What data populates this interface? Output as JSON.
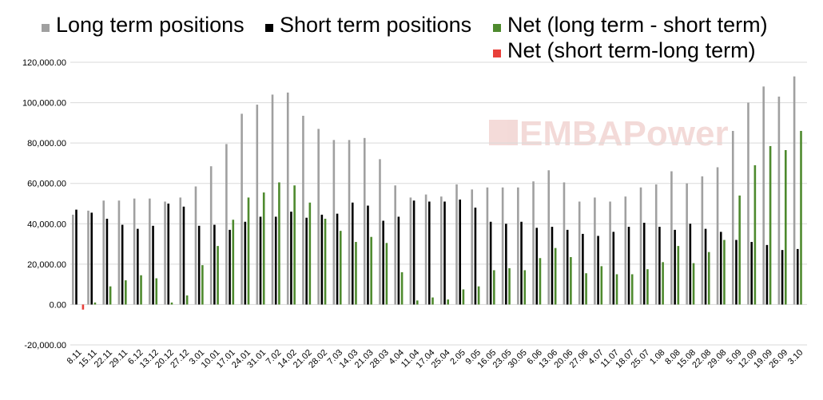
{
  "chart_data": {
    "type": "bar",
    "categories": [
      "8.11",
      "15.11",
      "22.11",
      "29.11",
      "6.12",
      "13.12",
      "20.12",
      "27.12",
      "3.01",
      "10.01",
      "17.01",
      "24.01",
      "31.01",
      "7.02",
      "14.02",
      "21.02",
      "28.02",
      "7.03",
      "14.03",
      "21.03",
      "28.03",
      "4.04",
      "11.04",
      "17.04",
      "25.04",
      "2.05",
      "9.05",
      "16.05",
      "23.05",
      "30.05",
      "6.06",
      "13.06",
      "20.06",
      "27.06",
      "4.07",
      "11.07",
      "18.07",
      "25.07",
      "1.08",
      "8.08",
      "15.08",
      "22.08",
      "29.08",
      "5.09",
      "12.09",
      "19.09",
      "26.09",
      "3.10"
    ],
    "series": [
      {
        "name": "Long term positions",
        "color": "#a0a0a0",
        "values": [
          44500,
          46500,
          51500,
          51500,
          52500,
          52500,
          51000,
          53000,
          58500,
          68500,
          79500,
          94500,
          99000,
          104000,
          105000,
          93500,
          87000,
          81500,
          81500,
          82500,
          72000,
          59000,
          53000,
          54500,
          53500,
          59500,
          57000,
          58000,
          58000,
          58000,
          61000,
          66500,
          60500,
          51000,
          53000,
          51000,
          53500,
          58000,
          59500,
          66000,
          60000,
          63500,
          68000,
          86000,
          100000,
          108000,
          103000,
          113000
        ]
      },
      {
        "name": "Short term positions",
        "color": "#000000",
        "values": [
          47000,
          45500,
          42500,
          39500,
          37500,
          39000,
          50000,
          48500,
          39000,
          39500,
          37000,
          41000,
          43500,
          43500,
          46000,
          43000,
          44500,
          45000,
          50500,
          49000,
          41500,
          43500,
          51500,
          51000,
          51000,
          52000,
          48000,
          41000,
          40000,
          41000,
          38000,
          38500,
          37000,
          35000,
          34000,
          36000,
          38500,
          40500,
          38500,
          37000,
          40000,
          37500,
          36000,
          32000,
          31000,
          29500,
          27000,
          27500
        ]
      },
      {
        "name": "Net (long term - short term)",
        "color": "#4e8a2e",
        "values": [
          0,
          1000,
          9000,
          12000,
          14500,
          13000,
          1000,
          4500,
          19500,
          29000,
          42000,
          53000,
          55500,
          60500,
          59000,
          50500,
          42500,
          36500,
          31000,
          33500,
          30500,
          16000,
          2000,
          3500,
          2500,
          7500,
          9000,
          17000,
          18000,
          17000,
          23000,
          28000,
          23500,
          15500,
          19000,
          15000,
          15000,
          17500,
          21000,
          29000,
          20500,
          26000,
          32000,
          54000,
          69000,
          78500,
          76500,
          86000
        ]
      },
      {
        "name": "Net (short term-long term)",
        "color": "#e8403a",
        "values": [
          2500,
          0,
          0,
          0,
          0,
          0,
          0,
          0,
          0,
          0,
          0,
          0,
          0,
          0,
          0,
          0,
          0,
          0,
          0,
          0,
          0,
          0,
          0,
          0,
          0,
          0,
          0,
          0,
          0,
          0,
          0,
          0,
          0,
          0,
          0,
          0,
          0,
          0,
          0,
          0,
          0,
          0,
          0,
          0,
          0,
          0,
          0,
          0
        ]
      }
    ],
    "ylim": [
      -20000,
      120000
    ],
    "yticks": [
      "120,000.00",
      "100,000.00",
      "80,000.00",
      "60,000.00",
      "40,000.00",
      "20,000.00",
      "0.00",
      "-20,000.00"
    ],
    "ytick_values": [
      120000,
      100000,
      80000,
      60000,
      40000,
      20000,
      0,
      -20000
    ],
    "legend_position": "top",
    "grid": true,
    "watermark": "EMBAPower"
  }
}
